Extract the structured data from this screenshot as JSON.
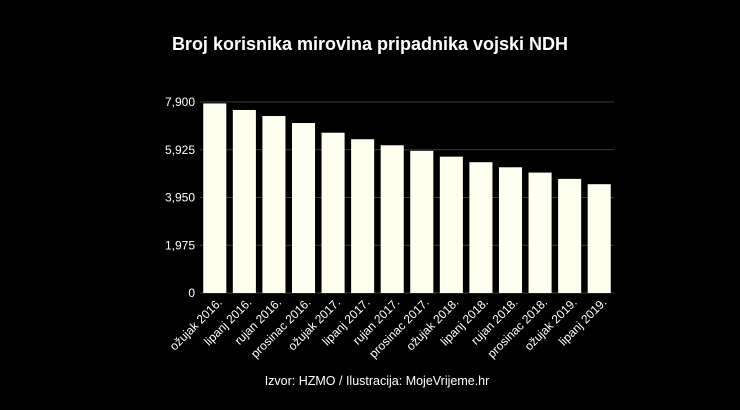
{
  "chart_data": {
    "type": "bar",
    "title": "Broj korisnika mirovina pripadnika vojski NDH",
    "source": "Izvor: HZMO / Ilustracija: MojeVrijeme.hr",
    "categories": [
      "ožujak 2016.",
      "lipanj 2016.",
      "rujan 2016.",
      "prosinac 2016.",
      "ožujak 2017.",
      "lipanj 2017.",
      "rujan 2017.",
      "prosinac 2017.",
      "ožujak 2018.",
      "lipanj 2018.",
      "rujan 2018.",
      "prosinac 2018.",
      "ožujak 2019.",
      "lipanj 2019."
    ],
    "values": [
      7840,
      7570,
      7320,
      7030,
      6630,
      6360,
      6110,
      5880,
      5640,
      5410,
      5200,
      4980,
      4720,
      4500
    ],
    "y_ticks": [
      0,
      1975,
      3950,
      5925,
      7900
    ],
    "y_tick_labels": [
      "0",
      "1,975",
      "3,950",
      "5,925",
      "7,900"
    ],
    "ylim": [
      0,
      7900
    ],
    "grid": true,
    "legend": "none",
    "colors": {
      "background": "#000000",
      "bar": "#fffff0",
      "grid": "#3c3c3c",
      "text": "#ffffff"
    }
  }
}
